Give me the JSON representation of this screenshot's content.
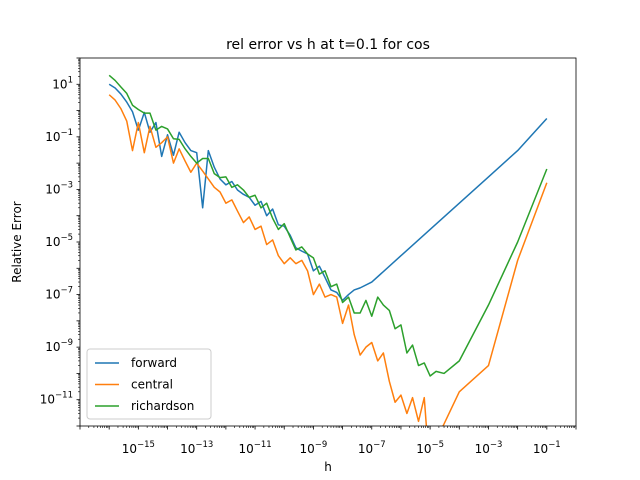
{
  "chart_data": {
    "type": "line",
    "title": "rel error vs h at t=0.1 for cos",
    "xlabel": "h",
    "ylabel": "Relative Error",
    "xscale": "log",
    "yscale": "log",
    "xlim": [
      1e-17,
      1.0
    ],
    "ylim": [
      1e-12,
      100
    ],
    "xticks": [
      {
        "value": 1e-15,
        "base": "10",
        "exp": "−15"
      },
      {
        "value": 1e-13,
        "base": "10",
        "exp": "−13"
      },
      {
        "value": 1e-11,
        "base": "10",
        "exp": "−11"
      },
      {
        "value": 1e-09,
        "base": "10",
        "exp": "−9"
      },
      {
        "value": 1e-07,
        "base": "10",
        "exp": "−7"
      },
      {
        "value": 1e-05,
        "base": "10",
        "exp": "−5"
      },
      {
        "value": 0.001,
        "base": "10",
        "exp": "−3"
      },
      {
        "value": 0.1,
        "base": "10",
        "exp": "−1"
      }
    ],
    "yticks": [
      {
        "value": 10,
        "base": "10",
        "exp": "1"
      },
      {
        "value": 0.1,
        "base": "10",
        "exp": "−1"
      },
      {
        "value": 0.001,
        "base": "10",
        "exp": "−3"
      },
      {
        "value": 1e-05,
        "base": "10",
        "exp": "−5"
      },
      {
        "value": 1e-07,
        "base": "10",
        "exp": "−7"
      },
      {
        "value": 1e-09,
        "base": "10",
        "exp": "−9"
      },
      {
        "value": 1e-11,
        "base": "10",
        "exp": "−11"
      }
    ],
    "grid": false,
    "legend_position": "lower-left",
    "series": [
      {
        "name": "forward",
        "color": "#1f77b4",
        "points": [
          [
            1e-16,
            10
          ],
          [
            1.6e-16,
            7.2
          ],
          [
            2.5e-16,
            4.3
          ],
          [
            4e-16,
            2.1
          ],
          [
            6.3e-16,
            0.9
          ],
          [
            1e-15,
            0.18
          ],
          [
            1.6e-15,
            0.85
          ],
          [
            2.5e-15,
            0.15
          ],
          [
            4e-15,
            0.35
          ],
          [
            6.3e-15,
            0.018
          ],
          [
            1e-14,
            0.12
          ],
          [
            1.6e-14,
            0.02
          ],
          [
            2.5e-14,
            0.15
          ],
          [
            4e-14,
            0.06
          ],
          [
            6.3e-14,
            0.03
          ],
          [
            1e-13,
            0.025
          ],
          [
            1.6e-13,
            0.0002
          ],
          [
            2.5e-13,
            0.03
          ],
          [
            4e-13,
            0.007
          ],
          [
            6.3e-13,
            0.0025
          ],
          [
            1e-12,
            0.0015
          ],
          [
            1.6e-12,
            0.002
          ],
          [
            2.5e-12,
            0.00095
          ],
          [
            4e-12,
            0.00065
          ],
          [
            6.3e-12,
            0.0005
          ],
          [
            1e-11,
            0.00025
          ],
          [
            1.6e-11,
            0.00035
          ],
          [
            2.5e-11,
            0.0001
          ],
          [
            4e-11,
            0.00018
          ],
          [
            6.3e-11,
            4.5e-05
          ],
          [
            1e-10,
            4e-05
          ],
          [
            1.6e-10,
            1.8e-05
          ],
          [
            2.5e-10,
            6e-06
          ],
          [
            4e-10,
            4.5e-06
          ],
          [
            6.3e-10,
            3.5e-06
          ],
          [
            1e-09,
            8e-07
          ],
          [
            1.6e-09,
            1.2e-06
          ],
          [
            2.5e-09,
            4.5e-07
          ],
          [
            4e-09,
            1.5e-07
          ],
          [
            6.3e-09,
            1.2e-07
          ],
          [
            1e-08,
            6e-08
          ],
          [
            1.6e-08,
            1e-07
          ],
          [
            2.5e-08,
            1.5e-07
          ],
          [
            4e-08,
            1.8e-07
          ],
          [
            1e-07,
            3e-07
          ],
          [
            1e-06,
            3e-06
          ],
          [
            1e-05,
            3e-05
          ],
          [
            0.0001,
            0.0003
          ],
          [
            0.001,
            0.003
          ],
          [
            0.01,
            0.03
          ],
          [
            0.1,
            0.5
          ]
        ]
      },
      {
        "name": "central",
        "color": "#ff7f0e",
        "points": [
          [
            1e-16,
            4
          ],
          [
            1.6e-16,
            2.5
          ],
          [
            2.5e-16,
            1.2
          ],
          [
            4e-16,
            0.4
          ],
          [
            6.3e-16,
            0.03
          ],
          [
            1e-15,
            0.35
          ],
          [
            1.6e-15,
            0.025
          ],
          [
            2.5e-15,
            0.25
          ],
          [
            4e-15,
            0.04
          ],
          [
            6.3e-15,
            0.06
          ],
          [
            1e-14,
            0.1
          ],
          [
            1.6e-14,
            0.01
          ],
          [
            2.5e-14,
            0.035
          ],
          [
            4e-14,
            0.012
          ],
          [
            6.3e-14,
            0.0045
          ],
          [
            1e-13,
            0.01
          ],
          [
            1.6e-13,
            0.005
          ],
          [
            2.5e-13,
            0.0025
          ],
          [
            4e-13,
            0.0012
          ],
          [
            6.3e-13,
            0.0008
          ],
          [
            1e-12,
            0.0003
          ],
          [
            1.6e-12,
            0.0004
          ],
          [
            2.5e-12,
            0.00015
          ],
          [
            4e-12,
            5.5e-05
          ],
          [
            6.3e-12,
            9e-05
          ],
          [
            1e-11,
            3e-05
          ],
          [
            1.6e-11,
            4e-05
          ],
          [
            2.5e-11,
            8e-06
          ],
          [
            4e-11,
            1.2e-05
          ],
          [
            6.3e-11,
            3e-06
          ],
          [
            1e-10,
            1.5e-06
          ],
          [
            1.6e-10,
            2.5e-06
          ],
          [
            2.5e-10,
            1.5e-06
          ],
          [
            4e-10,
            2e-06
          ],
          [
            6.3e-10,
            8e-07
          ],
          [
            1e-09,
            1e-07
          ],
          [
            1.6e-09,
            2.5e-07
          ],
          [
            2.5e-09,
            8e-08
          ],
          [
            4e-09,
            1e-07
          ],
          [
            6.3e-09,
            8e-08
          ],
          [
            1e-08,
            8e-09
          ],
          [
            1.6e-08,
            4e-08
          ],
          [
            2.5e-08,
            3e-09
          ],
          [
            4e-08,
            5e-10
          ],
          [
            6.3e-08,
            1e-09
          ],
          [
            1e-07,
            1.5e-09
          ],
          [
            1.6e-07,
            3e-10
          ],
          [
            2.5e-07,
            6e-10
          ],
          [
            4e-07,
            5e-11
          ],
          [
            6.3e-07,
            8e-12
          ],
          [
            1e-06,
            1.5e-11
          ],
          [
            1.6e-06,
            3e-12
          ],
          [
            2.5e-06,
            1.2e-11
          ],
          [
            4e-06,
            1.5e-12
          ],
          [
            6.3e-06,
            1.2e-11
          ],
          [
            1e-05,
            1.2e-14
          ],
          [
            1.6e-05,
            3e-13
          ],
          [
            3e-05,
            1.2e-12
          ],
          [
            0.0001,
            2e-11
          ],
          [
            0.001,
            2e-10
          ],
          [
            0.01,
            2e-06
          ],
          [
            0.1,
            0.0018
          ]
        ]
      },
      {
        "name": "richardson",
        "color": "#2ca02c",
        "points": [
          [
            1e-16,
            22
          ],
          [
            1.6e-16,
            14
          ],
          [
            2.5e-16,
            8
          ],
          [
            4e-16,
            4.5
          ],
          [
            6.3e-16,
            1.6
          ],
          [
            1e-15,
            1.1
          ],
          [
            1.6e-15,
            0.8
          ],
          [
            2.5e-15,
            0.8
          ],
          [
            4e-15,
            0.18
          ],
          [
            6.3e-15,
            0.25
          ],
          [
            1e-14,
            0.2
          ],
          [
            1.6e-14,
            0.085
          ],
          [
            2.5e-14,
            0.08
          ],
          [
            4e-14,
            0.035
          ],
          [
            6.3e-14,
            0.018
          ],
          [
            1e-13,
            0.01
          ],
          [
            1.6e-13,
            0.015
          ],
          [
            2.5e-13,
            0.015
          ],
          [
            4e-13,
            0.004
          ],
          [
            6.3e-13,
            0.0028
          ],
          [
            1e-12,
            0.003
          ],
          [
            1.6e-12,
            0.0012
          ],
          [
            2.5e-12,
            0.0015
          ],
          [
            4e-12,
            0.00095
          ],
          [
            6.3e-12,
            0.0005
          ],
          [
            1e-11,
            0.0006
          ],
          [
            1.6e-11,
            0.0002
          ],
          [
            2.5e-11,
            0.0003
          ],
          [
            4e-11,
            8e-05
          ],
          [
            6.3e-11,
            3e-05
          ],
          [
            1e-10,
            5e-05
          ],
          [
            1.6e-10,
            1.5e-05
          ],
          [
            2.5e-10,
            5e-06
          ],
          [
            4e-10,
            6.5e-06
          ],
          [
            6.3e-10,
            3.5e-06
          ],
          [
            1e-09,
            2.5e-06
          ],
          [
            1.6e-09,
            6e-07
          ],
          [
            2.5e-09,
            8e-07
          ],
          [
            4e-09,
            2e-07
          ],
          [
            6.3e-09,
            2.5e-07
          ],
          [
            1e-08,
            5e-08
          ],
          [
            1.6e-08,
            8e-08
          ],
          [
            2.5e-08,
            2e-08
          ],
          [
            4e-08,
            2e-08
          ],
          [
            6.3e-08,
            6e-08
          ],
          [
            1e-07,
            1.5e-08
          ],
          [
            1.6e-07,
            8e-08
          ],
          [
            2.5e-07,
            4e-08
          ],
          [
            4e-07,
            2.5e-08
          ],
          [
            6.3e-07,
            5e-09
          ],
          [
            1e-06,
            7e-09
          ],
          [
            1.6e-06,
            6e-10
          ],
          [
            2.5e-06,
            1.2e-09
          ],
          [
            4e-06,
            2e-10
          ],
          [
            6.3e-06,
            2.5e-10
          ],
          [
            1e-05,
            8e-11
          ],
          [
            1.6e-05,
            1.2e-10
          ],
          [
            3e-05,
            1e-10
          ],
          [
            0.0001,
            3e-10
          ],
          [
            0.001,
            4e-08
          ],
          [
            0.01,
            1e-05
          ],
          [
            0.1,
            0.006
          ]
        ]
      }
    ]
  }
}
